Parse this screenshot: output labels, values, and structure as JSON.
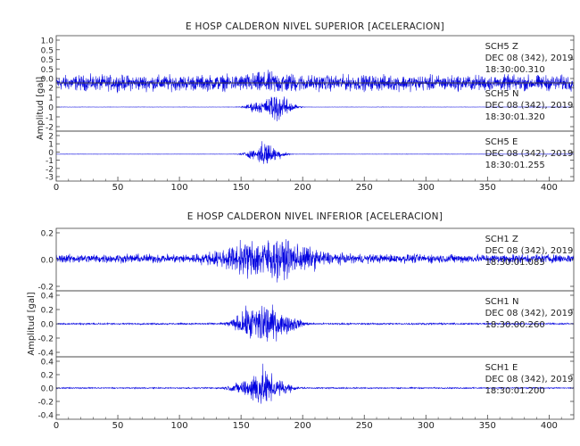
{
  "chart_data": [
    {
      "type": "line",
      "title": "E HOSP CALDERON NIVEL SUPERIOR [ACELERACION]",
      "ylabel": "Amplitud [gal]",
      "xlim": [
        0,
        420
      ],
      "x_ticks": [
        "0",
        "50",
        "100",
        "150",
        "200",
        "250",
        "300",
        "350",
        "400"
      ],
      "series_color": "#0000e0",
      "panels": [
        {
          "channel": "SCH5 Z",
          "date": "DEC 08 (342), 2019",
          "time": "18:30:00.310",
          "ylim": [
            0,
            1.1
          ],
          "y_ticks": [
            "1.0",
            "0.5",
            "0.5",
            "0.5",
            "0.0"
          ],
          "envelope": {
            "background": 0.25,
            "peaks": [
              {
                "x": 175,
                "amp": 0.12,
                "width": 20
              }
            ]
          }
        },
        {
          "channel": "SCH5 N",
          "date": "DEC 08 (342), 2019",
          "time": "18:30:01.320",
          "ylim": [
            -3,
            3
          ],
          "y_ticks": [
            "2",
            "1",
            "0",
            "-1",
            "-2"
          ],
          "envelope": {
            "background": 0.02,
            "peaks": [
              {
                "x": 162,
                "amp": 0.9,
                "width": 8
              },
              {
                "x": 178,
                "amp": 2.6,
                "width": 8
              },
              {
                "x": 190,
                "amp": 0.8,
                "width": 6
              }
            ]
          }
        },
        {
          "channel": "SCH5 E",
          "date": "DEC 08 (342), 2019",
          "time": "18:30:01.255",
          "ylim": [
            -3.5,
            3
          ],
          "y_ticks": [
            "2",
            "1",
            "0",
            "-1",
            "-2",
            "-3"
          ],
          "envelope": {
            "background": 0.02,
            "peaks": [
              {
                "x": 158,
                "amp": 0.6,
                "width": 7
              },
              {
                "x": 170,
                "amp": 2.4,
                "width": 7
              },
              {
                "x": 182,
                "amp": 0.6,
                "width": 6
              }
            ]
          }
        }
      ]
    },
    {
      "type": "line",
      "title": "E HOSP CALDERON NIVEL INFERIOR [ACELERACION]",
      "ylabel": "Amplitud [gal]",
      "xlim": [
        0,
        420
      ],
      "x_ticks": [
        "0",
        "50",
        "100",
        "150",
        "200",
        "250",
        "300",
        "350",
        "400"
      ],
      "series_color": "#0000e0",
      "panels": [
        {
          "channel": "SCH1 Z",
          "date": "DEC 08 (342), 2019",
          "time": "18:30:01.085",
          "ylim": [
            -0.32,
            0.3
          ],
          "y_ticks": [
            "0.2",
            "0.0",
            "-0.2"
          ],
          "envelope": {
            "background": 0.06,
            "peaks": [
              {
                "x": 165,
                "amp": 0.2,
                "width": 30
              },
              {
                "x": 195,
                "amp": 0.08,
                "width": 25
              }
            ]
          }
        },
        {
          "channel": "SCH1 N",
          "date": "DEC 08 (342), 2019",
          "time": "18:30:00.260",
          "ylim": [
            -0.45,
            0.45
          ],
          "y_ticks": [
            "0.4",
            "0.2",
            "0.0",
            "-0.2",
            "-0.4"
          ],
          "envelope": {
            "background": 0.015,
            "peaks": [
              {
                "x": 155,
                "amp": 0.2,
                "width": 12
              },
              {
                "x": 170,
                "amp": 0.36,
                "width": 12
              },
              {
                "x": 190,
                "amp": 0.12,
                "width": 10
              }
            ]
          }
        },
        {
          "channel": "SCH1 E",
          "date": "DEC 08 (342), 2019",
          "time": "18:30:01.200",
          "ylim": [
            -0.55,
            0.55
          ],
          "y_ticks": [
            "0.4",
            "0.2",
            "0.0",
            "-0.2",
            "-0.4"
          ],
          "envelope": {
            "background": 0.015,
            "peaks": [
              {
                "x": 150,
                "amp": 0.12,
                "width": 10
              },
              {
                "x": 166,
                "amp": 0.46,
                "width": 10
              },
              {
                "x": 182,
                "amp": 0.15,
                "width": 10
              }
            ]
          }
        }
      ]
    }
  ]
}
